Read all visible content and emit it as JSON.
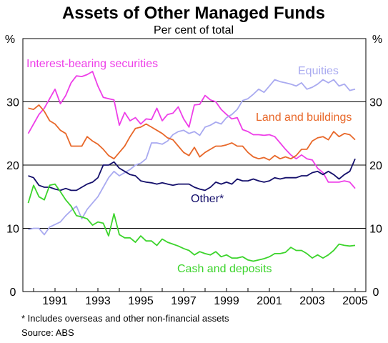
{
  "chart_data": {
    "type": "line",
    "title": "Assets of Other Managed Funds",
    "subtitle": "Per cent of total",
    "y_unit_left": "%",
    "y_unit_right": "%",
    "ylim": [
      0,
      40
    ],
    "yticks": [
      0,
      10,
      20,
      30
    ],
    "xlim": [
      1989.5,
      2005.5
    ],
    "xticks": [
      1991,
      1993,
      1995,
      1997,
      1999,
      2001,
      2003,
      2005
    ],
    "x_tick_labels": [
      "1991",
      "1993",
      "1995",
      "1997",
      "1999",
      "2001",
      "2003",
      "2005"
    ],
    "grid": "horizontal at 10, 20, 30",
    "footnote": "*   Includes overseas and other non-financial assets",
    "source": "Source: ABS",
    "series": [
      {
        "name": "Interest-bearing securities",
        "color": "#ee3ee8",
        "x": [
          1989.75,
          1990.0,
          1990.25,
          1990.5,
          1990.75,
          1991.0,
          1991.25,
          1991.5,
          1991.75,
          1992.0,
          1992.25,
          1992.5,
          1992.75,
          1993.0,
          1993.25,
          1993.5,
          1993.75,
          1994.0,
          1994.25,
          1994.5,
          1994.75,
          1995.0,
          1995.25,
          1995.5,
          1995.75,
          1996.0,
          1996.25,
          1996.5,
          1996.75,
          1997.0,
          1997.25,
          1997.5,
          1997.75,
          1998.0,
          1998.25,
          1998.5,
          1998.75,
          1999.0,
          1999.25,
          1999.5,
          1999.75,
          2000.0,
          2000.25,
          2000.5,
          2000.75,
          2001.0,
          2001.25,
          2001.5,
          2001.75,
          2002.0,
          2002.25,
          2002.5,
          2002.75,
          2003.0,
          2003.25,
          2003.5,
          2003.75,
          2004.0,
          2004.25,
          2004.5,
          2004.75,
          2005.0
        ],
        "values": [
          25.0,
          26.5,
          28.0,
          29.0,
          30.5,
          32.0,
          29.7,
          31.0,
          33.0,
          34.1,
          34.0,
          34.3,
          34.8,
          32.5,
          30.7,
          30.5,
          30.3,
          26.3,
          28.3,
          27.0,
          27.5,
          26.5,
          27.3,
          27.2,
          29.0,
          27.0,
          28.0,
          28.2,
          29.2,
          27.3,
          26.0,
          29.5,
          29.6,
          31.0,
          30.3,
          30.0,
          28.8,
          28.0,
          27.3,
          27.5,
          25.6,
          25.3,
          24.8,
          24.8,
          24.7,
          24.8,
          24.5,
          23.5,
          22.5,
          21.6,
          21.0,
          21.6,
          21.0,
          20.8,
          19.5,
          18.8,
          17.3,
          17.3,
          17.3,
          17.5,
          17.3,
          16.3
        ]
      },
      {
        "name": "Equities",
        "color": "#a9aaf0",
        "x": [
          1989.75,
          1990.0,
          1990.25,
          1990.5,
          1990.75,
          1991.0,
          1991.25,
          1991.5,
          1991.75,
          1992.0,
          1992.25,
          1992.5,
          1992.75,
          1993.0,
          1993.25,
          1993.5,
          1993.75,
          1994.0,
          1994.25,
          1994.5,
          1994.75,
          1995.0,
          1995.25,
          1995.5,
          1995.75,
          1996.0,
          1996.25,
          1996.5,
          1996.75,
          1997.0,
          1997.25,
          1997.5,
          1997.75,
          1998.0,
          1998.25,
          1998.5,
          1998.75,
          1999.0,
          1999.25,
          1999.5,
          1999.75,
          2000.0,
          2000.25,
          2000.5,
          2000.75,
          2001.0,
          2001.25,
          2001.5,
          2001.75,
          2002.0,
          2002.25,
          2002.5,
          2002.75,
          2003.0,
          2003.25,
          2003.5,
          2003.75,
          2004.0,
          2004.25,
          2004.5,
          2004.75,
          2005.0
        ],
        "values": [
          9.8,
          10.0,
          10.0,
          9.0,
          10.2,
          10.6,
          11.0,
          12.0,
          12.8,
          13.5,
          11.5,
          13.0,
          14.0,
          15.0,
          16.5,
          18.0,
          19.0,
          18.3,
          18.8,
          19.3,
          20.0,
          20.3,
          21.0,
          23.5,
          23.5,
          23.3,
          23.8,
          24.8,
          25.3,
          25.5,
          25.0,
          25.3,
          24.7,
          26.0,
          26.3,
          26.8,
          26.5,
          27.5,
          28.0,
          28.8,
          30.2,
          30.5,
          31.2,
          32.0,
          31.5,
          32.5,
          33.5,
          33.2,
          33.0,
          32.8,
          32.5,
          33.0,
          32.0,
          32.3,
          32.8,
          33.5,
          33.0,
          33.5,
          32.5,
          32.8,
          31.8,
          32.0
        ]
      },
      {
        "name": "Land and buildings",
        "color": "#e8682a",
        "x": [
          1989.75,
          1990.0,
          1990.25,
          1990.5,
          1990.75,
          1991.0,
          1991.25,
          1991.5,
          1991.75,
          1992.0,
          1992.25,
          1992.5,
          1992.75,
          1993.0,
          1993.25,
          1993.5,
          1993.75,
          1994.0,
          1994.25,
          1994.5,
          1994.75,
          1995.0,
          1995.25,
          1995.5,
          1995.75,
          1996.0,
          1996.25,
          1996.5,
          1996.75,
          1997.0,
          1997.25,
          1997.5,
          1997.75,
          1998.0,
          1998.25,
          1998.5,
          1998.75,
          1999.0,
          1999.25,
          1999.5,
          1999.75,
          2000.0,
          2000.25,
          2000.5,
          2000.75,
          2001.0,
          2001.25,
          2001.5,
          2001.75,
          2002.0,
          2002.25,
          2002.5,
          2002.75,
          2003.0,
          2003.25,
          2003.5,
          2003.75,
          2004.0,
          2004.25,
          2004.5,
          2004.75,
          2005.0
        ],
        "values": [
          29.0,
          28.8,
          29.5,
          28.5,
          27.0,
          26.5,
          25.5,
          25.0,
          23.0,
          23.0,
          23.0,
          24.5,
          23.8,
          23.3,
          22.5,
          21.5,
          21.0,
          22.0,
          23.0,
          24.5,
          25.8,
          26.0,
          26.5,
          26.0,
          25.5,
          25.0,
          24.3,
          24.0,
          23.0,
          22.0,
          21.5,
          22.8,
          21.3,
          22.0,
          22.5,
          23.0,
          23.0,
          23.2,
          23.5,
          23.0,
          23.0,
          22.0,
          21.3,
          21.0,
          21.2,
          20.8,
          21.5,
          21.0,
          21.3,
          21.0,
          21.5,
          22.5,
          22.5,
          23.8,
          24.3,
          24.5,
          24.0,
          25.3,
          24.5,
          25.0,
          24.8,
          24.0
        ]
      },
      {
        "name": "Other*",
        "color": "#140f6b",
        "x": [
          1989.75,
          1990.0,
          1990.25,
          1990.5,
          1990.75,
          1991.0,
          1991.25,
          1991.5,
          1991.75,
          1992.0,
          1992.25,
          1992.5,
          1992.75,
          1993.0,
          1993.25,
          1993.5,
          1993.75,
          1994.0,
          1994.25,
          1994.5,
          1994.75,
          1995.0,
          1995.25,
          1995.5,
          1995.75,
          1996.0,
          1996.25,
          1996.5,
          1996.75,
          1997.0,
          1997.25,
          1997.5,
          1997.75,
          1998.0,
          1998.25,
          1998.5,
          1998.75,
          1999.0,
          1999.25,
          1999.5,
          1999.75,
          2000.0,
          2000.25,
          2000.5,
          2000.75,
          2001.0,
          2001.25,
          2001.5,
          2001.75,
          2002.0,
          2002.25,
          2002.5,
          2002.75,
          2003.0,
          2003.25,
          2003.5,
          2003.75,
          2004.0,
          2004.25,
          2004.5,
          2004.75,
          2005.0
        ],
        "values": [
          18.3,
          18.0,
          16.8,
          16.5,
          16.5,
          16.2,
          16.0,
          16.3,
          16.0,
          16.0,
          16.5,
          17.0,
          17.3,
          18.0,
          20.0,
          20.0,
          20.5,
          19.5,
          19.0,
          18.5,
          18.3,
          17.5,
          17.3,
          17.2,
          17.0,
          17.2,
          17.0,
          16.8,
          17.0,
          17.0,
          17.0,
          16.5,
          16.2,
          16.0,
          16.5,
          17.3,
          17.0,
          17.3,
          17.0,
          17.8,
          17.5,
          17.5,
          17.8,
          17.5,
          17.3,
          17.5,
          18.0,
          17.8,
          18.0,
          18.0,
          18.0,
          18.3,
          18.3,
          18.8,
          19.0,
          18.5,
          19.0,
          18.5,
          17.8,
          18.5,
          19.0,
          21.0
        ]
      },
      {
        "name": "Cash and deposits",
        "color": "#3cd42c",
        "x": [
          1989.75,
          1990.0,
          1990.25,
          1990.5,
          1990.75,
          1991.0,
          1991.25,
          1991.5,
          1991.75,
          1992.0,
          1992.25,
          1992.5,
          1992.75,
          1993.0,
          1993.25,
          1993.5,
          1993.75,
          1994.0,
          1994.25,
          1994.5,
          1994.75,
          1995.0,
          1995.25,
          1995.5,
          1995.75,
          1996.0,
          1996.25,
          1996.5,
          1996.75,
          1997.0,
          1997.25,
          1997.5,
          1997.75,
          1998.0,
          1998.25,
          1998.5,
          1998.75,
          1999.0,
          1999.25,
          1999.5,
          1999.75,
          2000.0,
          2000.25,
          2000.5,
          2000.75,
          2001.0,
          2001.25,
          2001.5,
          2001.75,
          2002.0,
          2002.25,
          2002.5,
          2002.75,
          2003.0,
          2003.25,
          2003.5,
          2003.75,
          2004.0,
          2004.25,
          2004.5,
          2004.75,
          2005.0
        ],
        "values": [
          14.0,
          16.8,
          15.0,
          14.5,
          16.8,
          17.0,
          15.8,
          14.5,
          13.5,
          12.0,
          11.8,
          11.5,
          10.5,
          11.0,
          10.8,
          8.8,
          12.3,
          9.0,
          8.5,
          8.5,
          7.8,
          8.8,
          8.0,
          8.0,
          7.3,
          8.3,
          7.8,
          7.5,
          7.2,
          6.8,
          6.5,
          5.8,
          6.3,
          6.0,
          5.8,
          6.3,
          5.5,
          5.8,
          5.3,
          5.3,
          5.5,
          5.0,
          4.8,
          5.0,
          5.2,
          5.5,
          6.0,
          6.0,
          6.2,
          7.0,
          6.5,
          6.5,
          6.0,
          5.3,
          5.8,
          5.3,
          5.8,
          6.5,
          7.5,
          7.3,
          7.2,
          7.3
        ]
      }
    ],
    "series_labels": [
      {
        "text": "Interest-bearing securities",
        "color": "#ee3ee8"
      },
      {
        "text": "Equities",
        "color": "#a9aaf0"
      },
      {
        "text": "Land and buildings",
        "color": "#e8682a"
      },
      {
        "text": "Other*",
        "color": "#140f6b"
      },
      {
        "text": "Cash and deposits",
        "color": "#3cd42c"
      }
    ]
  }
}
